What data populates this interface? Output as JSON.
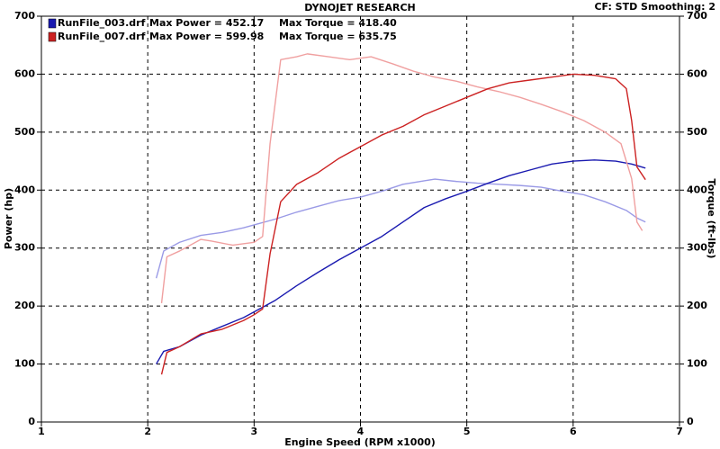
{
  "chart_data": {
    "type": "line",
    "title": "DYNOJET RESEARCH",
    "settings_text": "CF: STD  Smoothing: 2",
    "x_label": "Engine Speed (RPM x1000)",
    "y_label": "Power (hp)",
    "y2_label": "Torque (ft-lbs)",
    "xlim": [
      1,
      7
    ],
    "xticks": [
      1,
      2,
      3,
      4,
      5,
      6,
      7
    ],
    "ylim": [
      0,
      700
    ],
    "yticks": [
      0,
      100,
      200,
      300,
      400,
      500,
      600,
      700
    ],
    "y2lim": [
      0,
      700
    ],
    "y2ticks": [
      0,
      100,
      200,
      300,
      400,
      500,
      600,
      700
    ],
    "grid": true,
    "runs": [
      {
        "name": "RunFile_003.drf",
        "max_power": "Max Power = 452.17",
        "max_torque": "Max Torque = 418.40",
        "power": {
          "color": "#1a1ab0",
          "x": [
            2.08,
            2.15,
            2.3,
            2.5,
            2.7,
            2.9,
            3.0,
            3.2,
            3.4,
            3.6,
            3.8,
            4.0,
            4.2,
            4.4,
            4.6,
            4.8,
            5.0,
            5.2,
            5.4,
            5.6,
            5.8,
            6.0,
            6.2,
            6.4,
            6.55,
            6.68
          ],
          "values": [
            100,
            122,
            130,
            150,
            165,
            180,
            190,
            210,
            235,
            258,
            280,
            300,
            320,
            345,
            370,
            385,
            398,
            412,
            425,
            435,
            445,
            450,
            452,
            450,
            445,
            438
          ]
        },
        "torque": {
          "color": "#9a9ae6",
          "axis": "y2",
          "x": [
            2.08,
            2.15,
            2.3,
            2.5,
            2.7,
            2.9,
            3.0,
            3.2,
            3.4,
            3.6,
            3.8,
            4.0,
            4.2,
            4.4,
            4.6,
            4.7,
            4.9,
            5.1,
            5.3,
            5.5,
            5.7,
            5.9,
            6.1,
            6.3,
            6.5,
            6.6,
            6.68
          ],
          "values": [
            248,
            295,
            310,
            322,
            327,
            335,
            340,
            350,
            362,
            372,
            382,
            388,
            398,
            410,
            416,
            419,
            415,
            412,
            410,
            408,
            405,
            398,
            392,
            380,
            365,
            352,
            345
          ]
        }
      },
      {
        "name": "RunFile_007.drf",
        "max_power": "Max Power = 599.98",
        "max_torque": "Max Torque = 635.75",
        "power": {
          "color": "#cc2222",
          "x": [
            2.13,
            2.18,
            2.3,
            2.5,
            2.7,
            2.9,
            3.0,
            3.08,
            3.15,
            3.25,
            3.4,
            3.6,
            3.8,
            4.0,
            4.2,
            4.4,
            4.6,
            4.8,
            5.0,
            5.2,
            5.4,
            5.6,
            5.8,
            6.0,
            6.2,
            6.4,
            6.5,
            6.55,
            6.6,
            6.68
          ],
          "values": [
            82,
            120,
            130,
            152,
            160,
            175,
            185,
            195,
            290,
            380,
            410,
            430,
            455,
            475,
            495,
            510,
            530,
            545,
            560,
            575,
            585,
            590,
            595,
            600,
            598,
            592,
            575,
            520,
            440,
            418
          ]
        },
        "torque": {
          "color": "#f0a0a0",
          "axis": "y2",
          "x": [
            2.13,
            2.18,
            2.3,
            2.5,
            2.6,
            2.8,
            3.0,
            3.08,
            3.15,
            3.25,
            3.4,
            3.5,
            3.7,
            3.9,
            4.1,
            4.3,
            4.5,
            4.7,
            4.9,
            5.1,
            5.3,
            5.5,
            5.7,
            5.9,
            6.1,
            6.3,
            6.45,
            6.55,
            6.6,
            6.65
          ],
          "values": [
            205,
            285,
            295,
            315,
            312,
            305,
            310,
            320,
            480,
            625,
            630,
            635,
            630,
            625,
            630,
            618,
            605,
            595,
            588,
            578,
            570,
            560,
            548,
            535,
            520,
            500,
            480,
            420,
            345,
            330
          ]
        }
      }
    ]
  }
}
